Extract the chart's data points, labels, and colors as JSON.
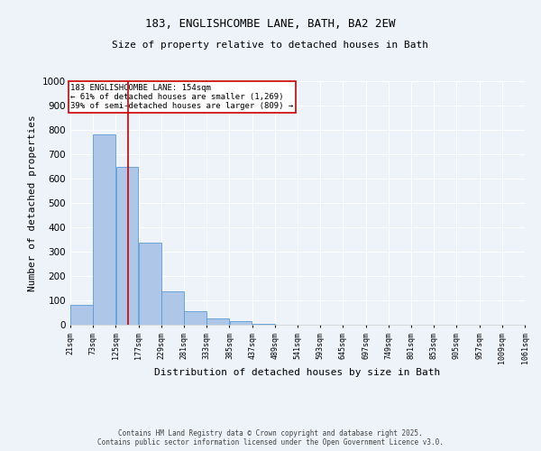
{
  "title1": "183, ENGLISHCOMBE LANE, BATH, BA2 2EW",
  "title2": "Size of property relative to detached houses in Bath",
  "xlabel": "Distribution of detached houses by size in Bath",
  "ylabel": "Number of detached properties",
  "bar_values": [
    83,
    783,
    648,
    336,
    138,
    57,
    25,
    16,
    5,
    1,
    0,
    0,
    0,
    0,
    0,
    0,
    0,
    0,
    0,
    0
  ],
  "bin_edges": [
    21,
    73,
    125,
    177,
    229,
    281,
    333,
    385,
    437,
    489,
    541,
    593,
    645,
    697,
    749,
    801,
    853,
    905,
    957,
    1009,
    1061
  ],
  "tick_labels": [
    "21sqm",
    "73sqm",
    "125sqm",
    "177sqm",
    "229sqm",
    "281sqm",
    "333sqm",
    "385sqm",
    "437sqm",
    "489sqm",
    "541sqm",
    "593sqm",
    "645sqm",
    "697sqm",
    "749sqm",
    "801sqm",
    "853sqm",
    "905sqm",
    "957sqm",
    "1009sqm",
    "1061sqm"
  ],
  "bar_color": "#aec6e8",
  "bar_edge_color": "#5b9bd5",
  "vline_x": 154,
  "vline_color": "#cc0000",
  "annotation_text": "183 ENGLISHCOMBE LANE: 154sqm\n← 61% of detached houses are smaller (1,269)\n39% of semi-detached houses are larger (809) →",
  "annotation_box_color": "#ffffff",
  "annotation_box_edge": "#cc0000",
  "ylim": [
    0,
    1000
  ],
  "yticks": [
    0,
    100,
    200,
    300,
    400,
    500,
    600,
    700,
    800,
    900,
    1000
  ],
  "footer1": "Contains HM Land Registry data © Crown copyright and database right 2025.",
  "footer2": "Contains public sector information licensed under the Open Government Licence v3.0.",
  "bg_color": "#eef2f9",
  "grid_color": "#ffffff"
}
